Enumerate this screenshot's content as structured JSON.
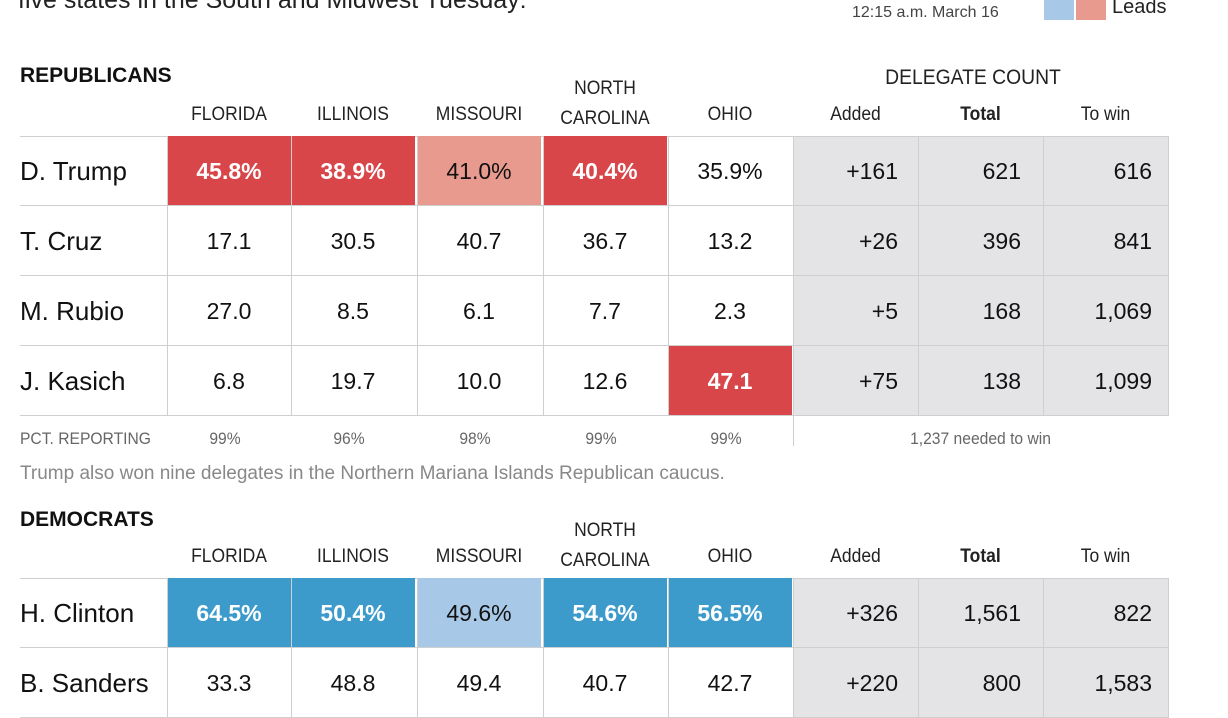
{
  "intro_text": "five states in the South and Midwest Tuesday:",
  "timestamp": "12:15 a.m. March 16",
  "legend": {
    "label": "Leads",
    "colors": {
      "dem_light": "#a7c8e6",
      "rep_light": "#e99a8f",
      "rep_strong": "#d9464a",
      "dem_strong": "#3d9bcc"
    }
  },
  "states": [
    "FLORIDA",
    "ILLINOIS",
    "MISSOURI",
    "NORTH\nCAROLINA",
    "OHIO"
  ],
  "delegate_columns": [
    "Added",
    "Total",
    "To win"
  ],
  "republicans": {
    "title": "REPUBLICANS",
    "delegate_header": "DELEGATE COUNT",
    "candidates": [
      {
        "name": "D. Trump",
        "results": [
          "45.8%",
          "38.9%",
          "41.0%",
          "40.4%",
          "35.9%"
        ],
        "added": "+161",
        "total": "621",
        "to_win": "616"
      },
      {
        "name": "T. Cruz",
        "results": [
          "17.1",
          "30.5",
          "40.7",
          "36.7",
          "13.2"
        ],
        "added": "+26",
        "total": "396",
        "to_win": "841"
      },
      {
        "name": "M. Rubio",
        "results": [
          "27.0",
          "8.5",
          "6.1",
          "7.7",
          "2.3"
        ],
        "added": "+5",
        "total": "168",
        "to_win": "1,069"
      },
      {
        "name": "J. Kasich",
        "results": [
          "6.8",
          "19.7",
          "10.0",
          "12.6",
          "47.1"
        ],
        "added": "+75",
        "total": "138",
        "to_win": "1,099"
      }
    ],
    "pct_label": "PCT. REPORTING",
    "pct_reporting": [
      "99%",
      "96%",
      "98%",
      "99%",
      "99%"
    ],
    "needed": "1,237 needed to win",
    "note": "Trump also won nine delegates in the Northern Mariana Islands Republican caucus."
  },
  "democrats": {
    "title": "DEMOCRATS",
    "candidates": [
      {
        "name": "H. Clinton",
        "results": [
          "64.5%",
          "50.4%",
          "49.6%",
          "54.6%",
          "56.5%"
        ],
        "added": "+326",
        "total": "1,561",
        "to_win": "822"
      },
      {
        "name": "B. Sanders",
        "results": [
          "33.3",
          "48.8",
          "49.4",
          "40.7",
          "42.7"
        ],
        "added": "+220",
        "total": "800",
        "to_win": "1,583"
      }
    ]
  }
}
